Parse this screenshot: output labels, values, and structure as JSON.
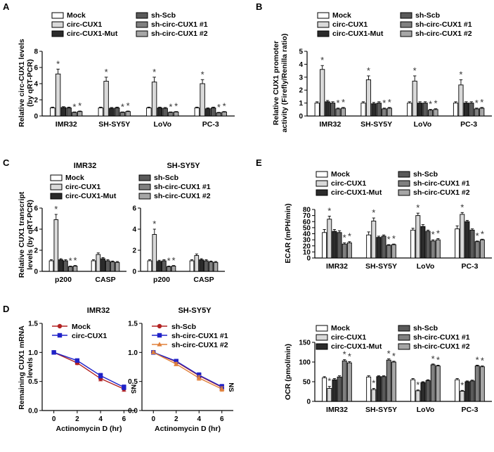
{
  "colors": {
    "mock": "#ffffff",
    "circ": "#d9d9d9",
    "mut": "#2b2b2b",
    "scb": "#5a5a5a",
    "sh1": "#808080",
    "sh2": "#a6a6a6",
    "line_red": "#b22222",
    "line_blue": "#1f22c8",
    "line_orange": "#e0803a"
  },
  "legend_six": [
    "Mock",
    "circ-CUX1",
    "circ-CUX1-Mut",
    "sh-Scb",
    "sh-circ-CUX1 #1",
    "sh-circ-CUX1 #2"
  ],
  "star": "*",
  "ns": "NS",
  "panels": {
    "A": {
      "letter": "A",
      "ylabel1": "Relative circ-CUX1 levels",
      "ylabel2": "(by qRT-PCR)"
    },
    "B": {
      "letter": "B",
      "ylabel1": "Relative CUX1 promoter",
      "ylabel2": "activity (Firefly/Renilla ratio)"
    },
    "C": {
      "letter": "C",
      "ylabel1": "Relative CUX1 transcript",
      "ylabel2": "levels (by qRT-PCR)",
      "sub1": "IMR32",
      "sub2": "SH-SY5Y"
    },
    "D": {
      "letter": "D",
      "ylabel1": "Remaining CUX1 mRNA",
      "ylabel2": "levels",
      "sub1": "IMR32",
      "sub2": "SH-SY5Y"
    },
    "E": {
      "letter": "E"
    }
  },
  "chart_data": [
    {
      "id": "A",
      "type": "bar",
      "title": "",
      "ylabel": "Relative circ-CUX1 levels (by qRT-PCR)",
      "categories": [
        "IMR32",
        "SH-SY5Y",
        "LoVo",
        "PC-3"
      ],
      "ylim": [
        0,
        8
      ],
      "yticks": [
        0,
        2,
        4,
        6,
        8
      ],
      "series": [
        {
          "name": "Mock",
          "values": [
            1,
            1,
            1,
            1
          ]
        },
        {
          "name": "circ-CUX1",
          "values": [
            5.2,
            4.3,
            4.2,
            4.0
          ]
        },
        {
          "name": "circ-CUX1-Mut",
          "values": [
            1.05,
            0.95,
            1.0,
            0.9
          ]
        },
        {
          "name": "sh-Scb",
          "values": [
            1.0,
            1.0,
            0.95,
            1.0
          ]
        },
        {
          "name": "sh-circ-CUX1 #1",
          "values": [
            0.45,
            0.45,
            0.45,
            0.4
          ]
        },
        {
          "name": "sh-circ-CUX1 #2",
          "values": [
            0.55,
            0.55,
            0.5,
            0.5
          ]
        }
      ],
      "errors": [
        [
          0.1,
          0.1,
          0.1,
          0.1
        ],
        [
          0.6,
          0.5,
          0.6,
          0.5
        ],
        [
          0.1,
          0.1,
          0.1,
          0.1
        ],
        [
          0.1,
          0.1,
          0.1,
          0.1
        ],
        [
          0.05,
          0.05,
          0.05,
          0.05
        ],
        [
          0.06,
          0.06,
          0.05,
          0.05
        ]
      ],
      "stars": [
        [
          0,
          1,
          0,
          0,
          1,
          1
        ],
        [
          0,
          1,
          0,
          0,
          1,
          1
        ],
        [
          0,
          1,
          0,
          0,
          1,
          1
        ],
        [
          0,
          1,
          0,
          0,
          1,
          1
        ]
      ]
    },
    {
      "id": "B",
      "type": "bar",
      "title": "",
      "ylabel": "Relative CUX1 promoter activity (Firefly/Renilla ratio)",
      "categories": [
        "IMR32",
        "SH-SY5Y",
        "LoVo",
        "PC-3"
      ],
      "ylim": [
        0,
        5
      ],
      "yticks": [
        0,
        1,
        2,
        3,
        4,
        5
      ],
      "series": [
        {
          "name": "Mock",
          "values": [
            1,
            1,
            1,
            1
          ]
        },
        {
          "name": "circ-CUX1",
          "values": [
            3.6,
            2.8,
            2.7,
            2.4
          ]
        },
        {
          "name": "circ-CUX1-Mut",
          "values": [
            1.1,
            0.95,
            1.0,
            1.0
          ]
        },
        {
          "name": "sh-Scb",
          "values": [
            1.0,
            1.0,
            1.0,
            1.0
          ]
        },
        {
          "name": "sh-circ-CUX1 #1",
          "values": [
            0.55,
            0.55,
            0.45,
            0.55
          ]
        },
        {
          "name": "sh-circ-CUX1 #2",
          "values": [
            0.6,
            0.6,
            0.5,
            0.6
          ]
        }
      ],
      "errors": [
        [
          0.1,
          0.1,
          0.1,
          0.1
        ],
        [
          0.3,
          0.3,
          0.4,
          0.4
        ],
        [
          0.1,
          0.1,
          0.1,
          0.1
        ],
        [
          0.1,
          0.1,
          0.1,
          0.1
        ],
        [
          0.06,
          0.06,
          0.06,
          0.06
        ],
        [
          0.06,
          0.06,
          0.06,
          0.06
        ]
      ],
      "stars": [
        [
          0,
          1,
          0,
          0,
          1,
          1
        ],
        [
          0,
          1,
          0,
          0,
          1,
          1
        ],
        [
          0,
          1,
          0,
          0,
          1,
          1
        ],
        [
          0,
          1,
          0,
          0,
          1,
          1
        ]
      ]
    },
    {
      "id": "C1",
      "type": "bar",
      "title": "IMR32",
      "ylabel": "Relative CUX1 transcript levels (by qRT-PCR)",
      "categories": [
        "p200",
        "CASP"
      ],
      "ylim": [
        0,
        6
      ],
      "yticks": [
        0,
        2,
        4,
        6
      ],
      "series": [
        {
          "name": "Mock",
          "values": [
            1,
            1
          ]
        },
        {
          "name": "circ-CUX1",
          "values": [
            4.9,
            1.6
          ]
        },
        {
          "name": "circ-CUX1-Mut",
          "values": [
            1.1,
            1.2
          ]
        },
        {
          "name": "sh-Scb",
          "values": [
            1.0,
            1.0
          ]
        },
        {
          "name": "sh-circ-CUX1 #1",
          "values": [
            0.45,
            0.9
          ]
        },
        {
          "name": "sh-circ-CUX1 #2",
          "values": [
            0.5,
            0.85
          ]
        }
      ],
      "errors": [
        [
          0.1,
          0.1
        ],
        [
          0.5,
          0.15
        ],
        [
          0.1,
          0.1
        ],
        [
          0.1,
          0.1
        ],
        [
          0.05,
          0.08
        ],
        [
          0.05,
          0.08
        ]
      ],
      "stars": [
        [
          0,
          1,
          0,
          0,
          1,
          1
        ],
        [
          0,
          0,
          0,
          0,
          0,
          0
        ]
      ]
    },
    {
      "id": "C2",
      "type": "bar",
      "title": "SH-SY5Y",
      "categories": [
        "p200",
        "CASP"
      ],
      "ylim": [
        0,
        6
      ],
      "yticks": [
        0,
        2,
        4,
        6
      ],
      "series": [
        {
          "name": "Mock",
          "values": [
            1,
            1
          ]
        },
        {
          "name": "circ-CUX1",
          "values": [
            3.5,
            1.5
          ]
        },
        {
          "name": "circ-CUX1-Mut",
          "values": [
            0.95,
            1.1
          ]
        },
        {
          "name": "sh-Scb",
          "values": [
            1.0,
            1.0
          ]
        },
        {
          "name": "sh-circ-CUX1 #1",
          "values": [
            0.45,
            0.9
          ]
        },
        {
          "name": "sh-circ-CUX1 #2",
          "values": [
            0.5,
            0.85
          ]
        }
      ],
      "errors": [
        [
          0.1,
          0.1
        ],
        [
          0.5,
          0.15
        ],
        [
          0.1,
          0.1
        ],
        [
          0.1,
          0.1
        ],
        [
          0.05,
          0.08
        ],
        [
          0.05,
          0.08
        ]
      ],
      "stars": [
        [
          0,
          1,
          0,
          0,
          1,
          1
        ],
        [
          0,
          0,
          0,
          0,
          0,
          0
        ]
      ]
    },
    {
      "id": "D1",
      "type": "line",
      "title": "IMR32",
      "xlabel": "Actinomycin D (hr)",
      "ylabel": "Remaining CUX1 mRNA levels",
      "x": [
        0,
        2,
        4,
        6
      ],
      "xlim": [
        -1,
        7
      ],
      "ylim": [
        0,
        1.5
      ],
      "yticks": [
        0,
        0.5,
        1.0,
        1.5
      ],
      "series": [
        {
          "name": "Mock",
          "values": [
            1.0,
            0.82,
            0.55,
            0.37
          ]
        },
        {
          "name": "circ-CUX1",
          "values": [
            1.0,
            0.86,
            0.6,
            0.4
          ]
        }
      ],
      "errors": [
        [
          0.02,
          0.03,
          0.04,
          0.04
        ],
        [
          0.02,
          0.03,
          0.04,
          0.04
        ]
      ],
      "annotation": "NS"
    },
    {
      "id": "D2",
      "type": "line",
      "title": "SH-SY5Y",
      "xlabel": "Actinomycin D (hr)",
      "x": [
        0,
        2,
        4,
        6
      ],
      "xlim": [
        -1,
        7
      ],
      "ylim": [
        0,
        1.5
      ],
      "yticks": [
        0,
        0.5,
        1.0,
        1.5
      ],
      "series": [
        {
          "name": "sh-Scb",
          "values": [
            1.0,
            0.84,
            0.6,
            0.4
          ]
        },
        {
          "name": "sh-circ-CUX1 #1",
          "values": [
            1.0,
            0.85,
            0.61,
            0.41
          ]
        },
        {
          "name": "sh-circ-CUX1 #2",
          "values": [
            1.0,
            0.8,
            0.56,
            0.37
          ]
        }
      ],
      "errors": [
        [
          0.02,
          0.03,
          0.04,
          0.04
        ],
        [
          0.02,
          0.03,
          0.04,
          0.04
        ],
        [
          0.02,
          0.03,
          0.04,
          0.04
        ]
      ],
      "annotation": "NS"
    },
    {
      "id": "E1",
      "type": "bar",
      "title": "",
      "ylabel": "ECAR (mPH/min)",
      "categories": [
        "IMR32",
        "SH-SY5Y",
        "LoVo",
        "PC-3"
      ],
      "ylim": [
        0,
        80
      ],
      "yticks": [
        0,
        10,
        20,
        30,
        40,
        50,
        60,
        70,
        80
      ],
      "series": [
        {
          "name": "Mock",
          "values": [
            42,
            38,
            46,
            48
          ]
        },
        {
          "name": "circ-CUX1",
          "values": [
            64,
            61,
            70,
            72
          ]
        },
        {
          "name": "circ-CUX1-Mut",
          "values": [
            44,
            34,
            52,
            60
          ]
        },
        {
          "name": "sh-Scb",
          "values": [
            42,
            36,
            44,
            46
          ]
        },
        {
          "name": "sh-circ-CUX1 #1",
          "values": [
            23,
            21,
            28,
            27
          ]
        },
        {
          "name": "sh-circ-CUX1 #2",
          "values": [
            25,
            22,
            30,
            30
          ]
        }
      ],
      "errors": [
        [
          5,
          5,
          3,
          5
        ],
        [
          5,
          5,
          4,
          3
        ],
        [
          3,
          2,
          3,
          2
        ],
        [
          3,
          2,
          2,
          2
        ],
        [
          2,
          1,
          2,
          1
        ],
        [
          2,
          1,
          2,
          1
        ]
      ],
      "stars": [
        [
          0,
          1,
          0,
          0,
          1,
          1
        ],
        [
          0,
          1,
          0,
          0,
          1,
          1
        ],
        [
          0,
          1,
          0,
          0,
          1,
          1
        ],
        [
          0,
          1,
          0,
          0,
          1,
          1
        ]
      ]
    },
    {
      "id": "E2",
      "type": "bar",
      "title": "",
      "ylabel": "OCR (pmol/min)",
      "categories": [
        "IMR32",
        "SH-SY5Y",
        "LoVo",
        "PC-3"
      ],
      "ylim": [
        0,
        150
      ],
      "yticks": [
        0,
        50,
        100,
        150
      ],
      "series": [
        {
          "name": "Mock",
          "values": [
            60,
            62,
            55,
            55
          ]
        },
        {
          "name": "circ-CUX1",
          "values": [
            33,
            30,
            27,
            26
          ]
        },
        {
          "name": "circ-CUX1-Mut",
          "values": [
            55,
            63,
            48,
            50
          ]
        },
        {
          "name": "sh-Scb",
          "values": [
            62,
            63,
            53,
            52
          ]
        },
        {
          "name": "sh-circ-CUX1 #1",
          "values": [
            103,
            105,
            93,
            90
          ]
        },
        {
          "name": "sh-circ-CUX1 #2",
          "values": [
            98,
            100,
            90,
            88
          ]
        }
      ],
      "errors": [
        [
          3,
          3,
          3,
          3
        ],
        [
          5,
          3,
          2,
          2
        ],
        [
          3,
          2,
          2,
          2
        ],
        [
          3,
          2,
          2,
          2
        ],
        [
          3,
          3,
          2,
          2
        ],
        [
          3,
          2,
          2,
          2
        ]
      ],
      "stars": [
        [
          0,
          1,
          0,
          0,
          1,
          1
        ],
        [
          0,
          1,
          0,
          0,
          1,
          1
        ],
        [
          0,
          1,
          0,
          0,
          1,
          1
        ],
        [
          0,
          1,
          0,
          0,
          1,
          1
        ]
      ]
    }
  ]
}
